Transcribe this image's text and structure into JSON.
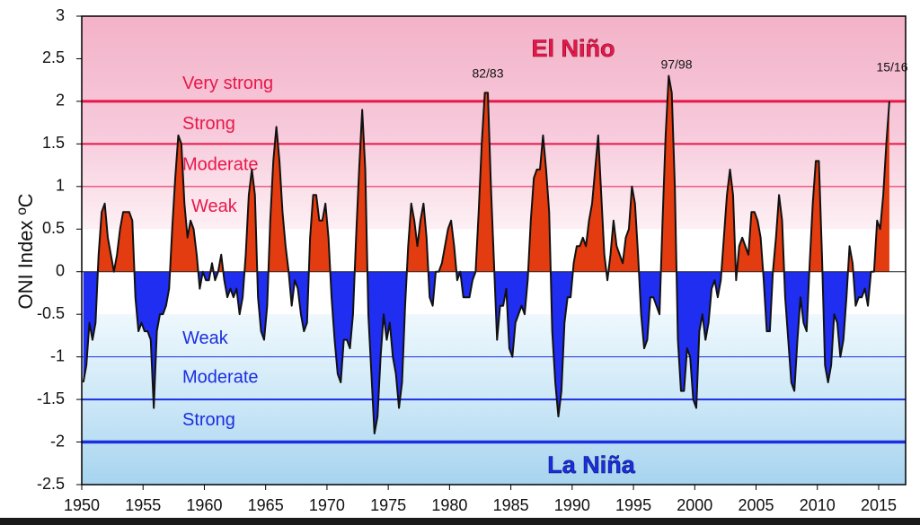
{
  "chart_data": {
    "type": "area",
    "y_label": "ONI Index ºC",
    "xlim": [
      1950,
      2017.2
    ],
    "ylim": [
      -2.5,
      3
    ],
    "xticks": [
      1950,
      1955,
      1960,
      1965,
      1970,
      1975,
      1980,
      1985,
      1990,
      1995,
      2000,
      2005,
      2010,
      2015
    ],
    "yticks": [
      3,
      2.5,
      2,
      1.5,
      1,
      0.5,
      0,
      -0.5,
      -1,
      -1.5,
      -2,
      -2.5
    ],
    "positive_color": "#e23c10",
    "negative_color": "#1f2ef0",
    "line_color": "#111111",
    "regions": [
      {
        "label": "El Niño",
        "color": "#e8174a"
      },
      {
        "label": "La Niña",
        "color": "#1b2ee0"
      }
    ],
    "thresholds": [
      {
        "value": 2,
        "label": "Very strong",
        "color": "#e8174a"
      },
      {
        "value": 1.5,
        "label": "Strong",
        "color": "#e8174a"
      },
      {
        "value": 1,
        "label": "Moderate",
        "color": "#e8174a"
      },
      {
        "value": 1,
        "label": "Weak",
        "color": "#e8174a"
      },
      {
        "value": -1,
        "label": "Weak",
        "color": "#1b2ee0"
      },
      {
        "value": -1.5,
        "label": "Moderate",
        "color": "#1b2ee0"
      },
      {
        "value": -2,
        "label": "Strong",
        "color": "#1b2ee0"
      }
    ],
    "annotations": [
      "82/83",
      "97/98",
      "15/16"
    ],
    "series": [
      {
        "x": [
          1950.125,
          1950.375,
          1950.625,
          1950.875,
          1951.125,
          1951.375,
          1951.625,
          1951.875,
          1952.125,
          1952.375,
          1952.625,
          1952.875,
          1953.125,
          1953.375,
          1953.625,
          1953.875,
          1954.125,
          1954.375,
          1954.625,
          1954.875,
          1955.125,
          1955.375,
          1955.625,
          1955.875,
          1956.125,
          1956.375,
          1956.625,
          1956.875,
          1957.125,
          1957.375,
          1957.625,
          1957.875,
          1958.125,
          1958.375,
          1958.625,
          1958.875,
          1959.125,
          1959.375,
          1959.625,
          1959.875,
          1960.125,
          1960.375,
          1960.625,
          1960.875,
          1961.125,
          1961.375,
          1961.625,
          1961.875,
          1962.125,
          1962.375,
          1962.625,
          1962.875,
          1963.125,
          1963.375,
          1963.625,
          1963.875,
          1964.125,
          1964.375,
          1964.625,
          1964.875,
          1965.125,
          1965.375,
          1965.625,
          1965.875,
          1966.125,
          1966.375,
          1966.625,
          1966.875,
          1967.125,
          1967.375,
          1967.625,
          1967.875,
          1968.125,
          1968.375,
          1968.625,
          1968.875,
          1969.125,
          1969.375,
          1969.625,
          1969.875,
          1970.125,
          1970.375,
          1970.625,
          1970.875,
          1971.125,
          1971.375,
          1971.625,
          1971.875,
          1972.125,
          1972.375,
          1972.625,
          1972.875,
          1973.125,
          1973.375,
          1973.625,
          1973.875,
          1974.125,
          1974.375,
          1974.625,
          1974.875,
          1975.125,
          1975.375,
          1975.625,
          1975.875,
          1976.125,
          1976.375,
          1976.625,
          1976.875,
          1977.125,
          1977.375,
          1977.625,
          1977.875,
          1978.125,
          1978.375,
          1978.625,
          1978.875,
          1979.125,
          1979.375,
          1979.625,
          1979.875,
          1980.125,
          1980.375,
          1980.625,
          1980.875,
          1981.125,
          1981.375,
          1981.625,
          1981.875,
          1982.125,
          1982.375,
          1982.625,
          1982.875,
          1983.125,
          1983.375,
          1983.625,
          1983.875,
          1984.125,
          1984.375,
          1984.625,
          1984.875,
          1985.125,
          1985.375,
          1985.625,
          1985.875,
          1986.125,
          1986.375,
          1986.625,
          1986.875,
          1987.125,
          1987.375,
          1987.625,
          1987.875,
          1988.125,
          1988.375,
          1988.625,
          1988.875,
          1989.125,
          1989.375,
          1989.625,
          1989.875,
          1990.125,
          1990.375,
          1990.625,
          1990.875,
          1991.125,
          1991.375,
          1991.625,
          1991.875,
          1992.125,
          1992.375,
          1992.625,
          1992.875,
          1993.125,
          1993.375,
          1993.625,
          1993.875,
          1994.125,
          1994.375,
          1994.625,
          1994.875,
          1995.125,
          1995.375,
          1995.625,
          1995.875,
          1996.125,
          1996.375,
          1996.625,
          1996.875,
          1997.125,
          1997.375,
          1997.625,
          1997.875,
          1998.125,
          1998.375,
          1998.625,
          1998.875,
          1999.125,
          1999.375,
          1999.625,
          1999.875,
          2000.125,
          2000.375,
          2000.625,
          2000.875,
          2001.125,
          2001.375,
          2001.625,
          2001.875,
          2002.125,
          2002.375,
          2002.625,
          2002.875,
          2003.125,
          2003.375,
          2003.625,
          2003.875,
          2004.125,
          2004.375,
          2004.625,
          2004.875,
          2005.125,
          2005.375,
          2005.625,
          2005.875,
          2006.125,
          2006.375,
          2006.625,
          2006.875,
          2007.125,
          2007.375,
          2007.625,
          2007.875,
          2008.125,
          2008.375,
          2008.625,
          2008.875,
          2009.125,
          2009.375,
          2009.625,
          2009.875,
          2010.125,
          2010.375,
          2010.625,
          2010.875,
          2011.125,
          2011.375,
          2011.625,
          2011.875,
          2012.125,
          2012.375,
          2012.625,
          2012.875,
          2013.125,
          2013.375,
          2013.625,
          2013.875,
          2014.125,
          2014.375,
          2014.625,
          2014.875,
          2015.125,
          2015.375,
          2015.625,
          2015.875
        ],
        "values": [
          -1.3,
          -1.1,
          -0.6,
          -0.8,
          -0.6,
          0.2,
          0.7,
          0.8,
          0.4,
          0.2,
          0.0,
          0.2,
          0.5,
          0.7,
          0.7,
          0.7,
          0.6,
          -0.3,
          -0.7,
          -0.6,
          -0.7,
          -0.7,
          -0.8,
          -1.6,
          -0.7,
          -0.5,
          -0.5,
          -0.4,
          -0.2,
          0.5,
          1.1,
          1.6,
          1.5,
          0.8,
          0.4,
          0.6,
          0.5,
          0.2,
          -0.2,
          0.0,
          -0.1,
          -0.1,
          0.1,
          -0.1,
          0.0,
          0.2,
          -0.1,
          -0.3,
          -0.2,
          -0.3,
          -0.2,
          -0.5,
          -0.3,
          0.2,
          0.9,
          1.2,
          0.9,
          -0.3,
          -0.7,
          -0.8,
          -0.4,
          0.6,
          1.3,
          1.7,
          1.3,
          0.7,
          0.3,
          0.0,
          -0.4,
          -0.1,
          -0.2,
          -0.5,
          -0.7,
          -0.6,
          0.4,
          0.9,
          0.9,
          0.6,
          0.6,
          0.8,
          0.4,
          -0.3,
          -0.8,
          -1.2,
          -1.3,
          -0.8,
          -0.8,
          -0.9,
          -0.5,
          0.4,
          1.2,
          1.9,
          1.2,
          -0.5,
          -1.2,
          -1.9,
          -1.7,
          -1.0,
          -0.5,
          -0.8,
          -0.6,
          -1.0,
          -1.2,
          -1.6,
          -1.3,
          -0.4,
          0.3,
          0.8,
          0.6,
          0.3,
          0.6,
          0.8,
          0.4,
          -0.3,
          -0.4,
          0.0,
          0.0,
          0.1,
          0.3,
          0.5,
          0.6,
          0.3,
          -0.1,
          0.0,
          -0.3,
          -0.3,
          -0.3,
          -0.1,
          0.0,
          0.7,
          1.5,
          2.1,
          2.1,
          1.0,
          0.1,
          -0.8,
          -0.4,
          -0.4,
          -0.2,
          -0.9,
          -1.0,
          -0.6,
          -0.5,
          -0.4,
          -0.5,
          -0.1,
          0.6,
          1.1,
          1.2,
          1.2,
          1.6,
          1.2,
          0.7,
          -0.7,
          -1.3,
          -1.7,
          -1.4,
          -0.6,
          -0.3,
          -0.3,
          0.1,
          0.3,
          0.3,
          0.4,
          0.3,
          0.6,
          0.8,
          1.2,
          1.6,
          0.9,
          0.2,
          -0.1,
          0.2,
          0.6,
          0.3,
          0.2,
          0.1,
          0.4,
          0.5,
          1.0,
          0.8,
          0.2,
          -0.5,
          -0.9,
          -0.8,
          -0.3,
          -0.3,
          -0.4,
          -0.5,
          0.6,
          1.6,
          2.3,
          2.1,
          1.0,
          -0.8,
          -1.4,
          -1.4,
          -0.9,
          -1.0,
          -1.5,
          -1.6,
          -0.7,
          -0.5,
          -0.8,
          -0.6,
          -0.2,
          -0.1,
          -0.3,
          -0.1,
          0.4,
          0.9,
          1.2,
          0.9,
          -0.1,
          0.3,
          0.4,
          0.3,
          0.2,
          0.7,
          0.7,
          0.6,
          0.4,
          -0.1,
          -0.7,
          -0.7,
          0.0,
          0.4,
          0.9,
          0.6,
          -0.3,
          -0.8,
          -1.3,
          -1.4,
          -0.8,
          -0.3,
          -0.6,
          -0.7,
          0.1,
          0.8,
          1.3,
          1.3,
          0.2,
          -1.1,
          -1.3,
          -1.1,
          -0.5,
          -0.6,
          -1.0,
          -0.8,
          -0.3,
          0.3,
          0.1,
          -0.4,
          -0.3,
          -0.3,
          -0.2,
          -0.4,
          0.0,
          0.0,
          0.6,
          0.5,
          0.9,
          1.5,
          2.0
        ]
      }
    ]
  }
}
